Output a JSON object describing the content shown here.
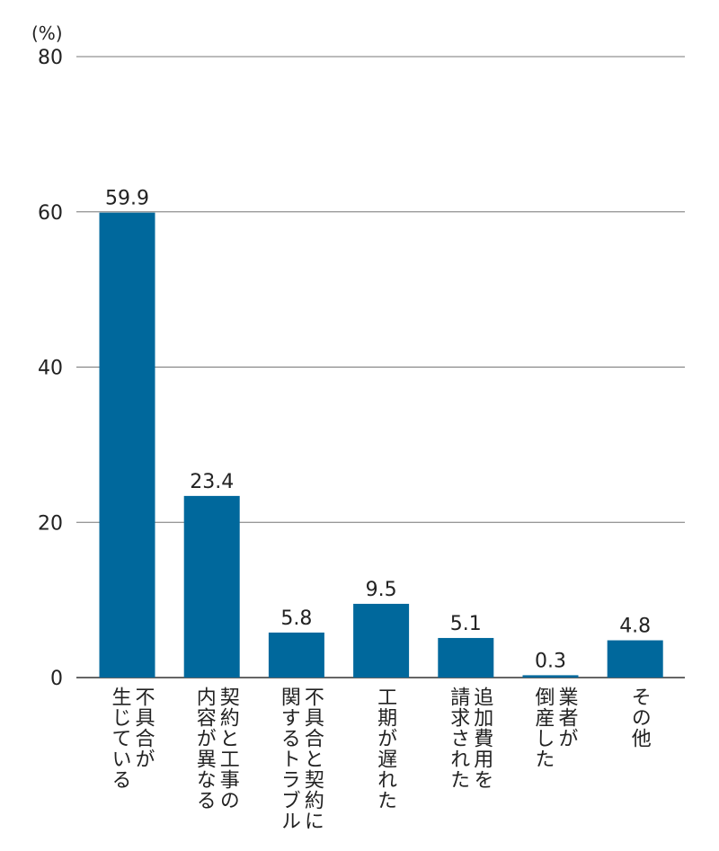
{
  "chart_data": {
    "type": "bar",
    "unit_label": "(%)",
    "categories": [
      [
        "不具合が",
        "生じている"
      ],
      [
        "契約と工事の",
        "内容が異なる"
      ],
      [
        "不具合と契約に",
        "関するトラブル"
      ],
      [
        "工期が遅れた"
      ],
      [
        "追加費用を",
        "請求された"
      ],
      [
        "業者が",
        "倒産した"
      ],
      [
        "その他"
      ]
    ],
    "values": [
      59.9,
      23.4,
      5.8,
      9.5,
      5.1,
      0.3,
      4.8
    ],
    "value_labels": [
      "59.9",
      "23.4",
      "5.8",
      "9.5",
      "5.1",
      "0.3",
      "4.8"
    ],
    "ylim": [
      0,
      80
    ],
    "yticks": [
      0,
      20,
      40,
      60,
      80
    ],
    "grid": true,
    "bar_color": "#00689c",
    "grid_color": "#777777"
  }
}
